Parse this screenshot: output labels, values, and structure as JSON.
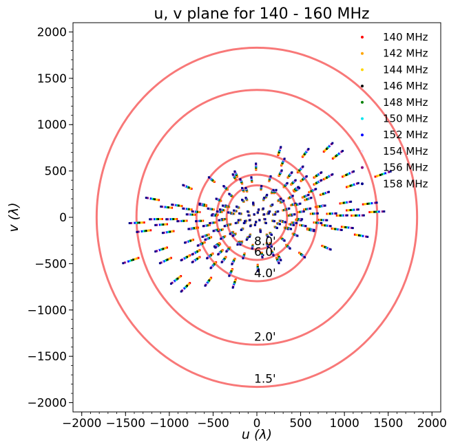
{
  "chart_data": {
    "type": "scatter",
    "title": "u, v plane for 140 - 160 MHz",
    "xlabel": "u (λ)",
    "ylabel": "v (λ)",
    "xlim": [
      -2100,
      2100
    ],
    "ylim": [
      -2100,
      2100
    ],
    "xticks": [
      -2000,
      -1500,
      -1000,
      -500,
      0,
      500,
      1000,
      1500,
      2000
    ],
    "yticks": [
      -2000,
      -1500,
      -1000,
      -500,
      0,
      500,
      1000,
      1500,
      2000
    ],
    "xtick_labels": [
      "−2000",
      "−1500",
      "−1000",
      "−500",
      "0",
      "500",
      "1000",
      "1500",
      "2000"
    ],
    "ytick_labels": [
      "−2000",
      "−1500",
      "−1000",
      "−500",
      "0",
      "500",
      "1000",
      "1500",
      "2000"
    ],
    "legend_position": "top-right",
    "series": [
      {
        "name": "140 MHz",
        "color": "#ff0000",
        "scale": 0.9333
      },
      {
        "name": "142 MHz",
        "color": "#ffa500",
        "scale": 0.9467
      },
      {
        "name": "144 MHz",
        "color": "#ffd700",
        "scale": 0.96
      },
      {
        "name": "146 MHz",
        "color": "#000000",
        "scale": 0.9733
      },
      {
        "name": "148 MHz",
        "color": "#008000",
        "scale": 0.9867
      },
      {
        "name": "150 MHz",
        "color": "#00e5ee",
        "scale": 1.0
      },
      {
        "name": "152 MHz",
        "color": "#0000ff",
        "scale": 1.0133
      },
      {
        "name": "154 MHz",
        "color": "#f2e8ff",
        "scale": 1.0267
      },
      {
        "name": "156 MHz",
        "color": "#800080",
        "scale": 1.04
      },
      {
        "name": "158 MHz",
        "color": "#00008b",
        "scale": 1.0533
      }
    ],
    "baselines_150MHz": [
      [
        -1450,
        -470
      ],
      [
        -1380,
        -60
      ],
      [
        -1100,
        -350
      ],
      [
        -1050,
        -470
      ],
      [
        -1020,
        -160
      ],
      [
        -930,
        -680
      ],
      [
        -820,
        -760
      ],
      [
        -800,
        330
      ],
      [
        -820,
        -440
      ],
      [
        -780,
        -260
      ],
      [
        -760,
        30
      ],
      [
        -720,
        -120
      ],
      [
        -700,
        -380
      ],
      [
        -640,
        -290
      ],
      [
        -620,
        130
      ],
      [
        -580,
        -90
      ],
      [
        -560,
        -230
      ],
      [
        -540,
        -420
      ],
      [
        -520,
        410
      ],
      [
        -480,
        30
      ],
      [
        -460,
        -300
      ],
      [
        -440,
        190
      ],
      [
        -420,
        -140
      ],
      [
        -400,
        80
      ],
      [
        -380,
        -20
      ],
      [
        -360,
        320
      ],
      [
        -340,
        120
      ],
      [
        -320,
        -80
      ],
      [
        -300,
        240
      ],
      [
        -280,
        40
      ],
      [
        -260,
        -190
      ],
      [
        -240,
        470
      ],
      [
        -220,
        110
      ],
      [
        -200,
        -30
      ],
      [
        -180,
        390
      ],
      [
        -160,
        180
      ],
      [
        -140,
        -60
      ],
      [
        -120,
        300
      ],
      [
        -100,
        60
      ],
      [
        -80,
        -30
      ],
      [
        -60,
        410
      ],
      [
        -40,
        150
      ],
      [
        -20,
        -80
      ],
      [
        -10,
        550
      ],
      [
        10,
        50
      ],
      [
        30,
        -30
      ],
      [
        50,
        320
      ],
      [
        70,
        90
      ],
      [
        90,
        -20
      ],
      [
        110,
        230
      ],
      [
        130,
        40
      ],
      [
        150,
        420
      ],
      [
        170,
        130
      ],
      [
        190,
        -40
      ],
      [
        210,
        280
      ],
      [
        230,
        60
      ],
      [
        250,
        -70
      ],
      [
        270,
        480
      ],
      [
        290,
        170
      ],
      [
        310,
        -50
      ],
      [
        330,
        350
      ],
      [
        350,
        90
      ],
      [
        370,
        -120
      ],
      [
        390,
        220
      ],
      [
        410,
        30
      ],
      [
        430,
        -60
      ],
      [
        450,
        310
      ],
      [
        470,
        140
      ],
      [
        490,
        -20
      ],
      [
        510,
        60
      ],
      [
        530,
        -90
      ],
      [
        560,
        700
      ],
      [
        590,
        200
      ],
      [
        620,
        -140
      ],
      [
        660,
        40
      ],
      [
        700,
        -60
      ],
      [
        740,
        120
      ],
      [
        800,
        -90
      ],
      [
        860,
        40
      ],
      [
        920,
        -130
      ],
      [
        980,
        20
      ],
      [
        1040,
        -110
      ],
      [
        1100,
        80
      ],
      [
        1160,
        20
      ],
      [
        1200,
        -200
      ],
      [
        1300,
        150
      ],
      [
        -700,
        -460
      ],
      [
        -420,
        -380
      ],
      [
        -180,
        -280
      ],
      [
        160,
        -300
      ],
      [
        260,
        -440
      ],
      [
        -500,
        -520
      ],
      [
        -300,
        -600
      ],
      [
        -260,
        -720
      ],
      [
        -380,
        -460
      ],
      [
        120,
        -200
      ],
      [
        -80,
        -200
      ],
      [
        40,
        -140
      ]
    ],
    "annotations": [
      {
        "label": "1.5'",
        "radius": 1830
      },
      {
        "label": "2.0'",
        "radius": 1375
      },
      {
        "label": "4.0'",
        "radius": 690
      },
      {
        "label": "6.0'",
        "radius": 460
      },
      {
        "label": "8.0'",
        "radius": 345
      }
    ],
    "circle_color": "#f87878"
  }
}
